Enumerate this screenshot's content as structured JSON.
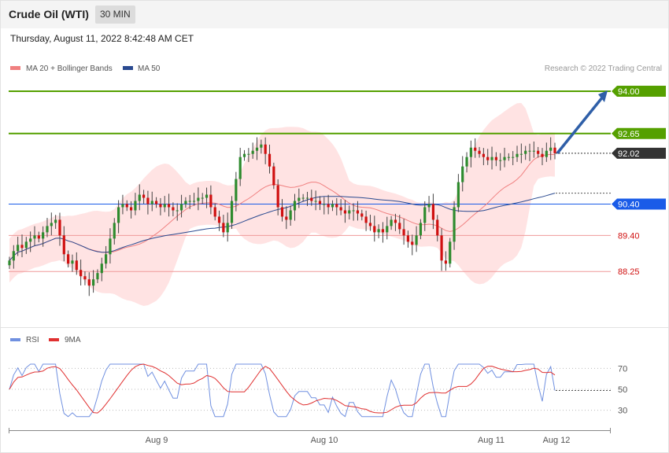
{
  "header": {
    "title": "Crude Oil (WTI)",
    "timeframe": "30 MIN"
  },
  "timestamp": "Thursday, August 11, 2022 8:42:48 AM CET",
  "credit": "Research © 2022 Trading Central",
  "colors": {
    "up": "#2e8b2e",
    "down": "#d01010",
    "band": "#ffdada",
    "ma20": "#f08080",
    "ma50": "#2a4a90",
    "resistance": "#55a000",
    "pivot": "#1a5ce8",
    "support": "#ef9a9a",
    "rsi": "#7090e0",
    "rsi_ma": "#e03030",
    "arrow": "#2f5fa8"
  },
  "chart_data": [
    {
      "type": "candlestick",
      "legend": [
        {
          "name": "MA 20 + Bollinger Bands"
        },
        {
          "name": "MA 50"
        }
      ],
      "x_ticks": [
        "Aug 9",
        "Aug 10",
        "Aug 11",
        "Aug 12"
      ],
      "ylim": [
        86.5,
        94.4
      ],
      "levels": [
        {
          "value": 94.0,
          "label": "94.00",
          "kind": "resistance"
        },
        {
          "value": 92.65,
          "label": "92.65",
          "kind": "resistance"
        },
        {
          "value": 92.02,
          "label": "92.02",
          "kind": "current"
        },
        {
          "value": 90.4,
          "label": "90.40",
          "kind": "pivot"
        },
        {
          "value": 89.4,
          "label": "89.40",
          "kind": "support"
        },
        {
          "value": 88.25,
          "label": "88.25",
          "kind": "support"
        }
      ],
      "projection": {
        "from": 92.02,
        "to": 94.0
      },
      "close": [
        88.6,
        88.9,
        89.1,
        89.0,
        89.2,
        89.3,
        89.4,
        89.3,
        89.5,
        89.7,
        89.8,
        89.9,
        89.4,
        88.8,
        88.5,
        88.6,
        88.3,
        88.1,
        88.0,
        87.8,
        88.0,
        88.2,
        88.5,
        88.8,
        89.3,
        89.8,
        90.3,
        90.4,
        90.3,
        90.2,
        90.5,
        90.7,
        90.6,
        90.4,
        90.5,
        90.4,
        90.3,
        90.4,
        90.3,
        90.2,
        90.2,
        90.4,
        90.5,
        90.5,
        90.5,
        90.6,
        90.6,
        90.7,
        90.3,
        90.0,
        89.8,
        89.5,
        89.8,
        90.5,
        91.2,
        91.9,
        92.0,
        92.0,
        92.1,
        92.2,
        92.3,
        92.0,
        91.6,
        91.0,
        90.3,
        90.0,
        89.9,
        90.2,
        90.5,
        90.6,
        90.6,
        90.6,
        90.5,
        90.5,
        90.4,
        90.4,
        90.3,
        90.4,
        90.3,
        90.2,
        90.1,
        90.2,
        90.2,
        90.1,
        90.0,
        89.8,
        89.7,
        89.5,
        89.6,
        89.5,
        89.7,
        89.9,
        89.8,
        89.6,
        89.4,
        89.2,
        89.1,
        89.4,
        89.8,
        90.3,
        90.4,
        89.9,
        89.4,
        88.6,
        88.5,
        89.2,
        90.3,
        91.1,
        91.6,
        91.9,
        92.2,
        92.1,
        92.0,
        91.9,
        91.8,
        91.9,
        91.8,
        91.8,
        91.9,
        91.9,
        91.9,
        92.0,
        92.0,
        92.1,
        92.1,
        92.1,
        92.0,
        91.9,
        92.1,
        92.2,
        92.02
      ],
      "rsi_ticks": [
        30,
        50,
        70
      ],
      "rsi_ylim": [
        20,
        80
      ]
    },
    {
      "type": "line",
      "legend": [
        {
          "name": "RSI"
        },
        {
          "name": "9MA"
        }
      ]
    }
  ]
}
